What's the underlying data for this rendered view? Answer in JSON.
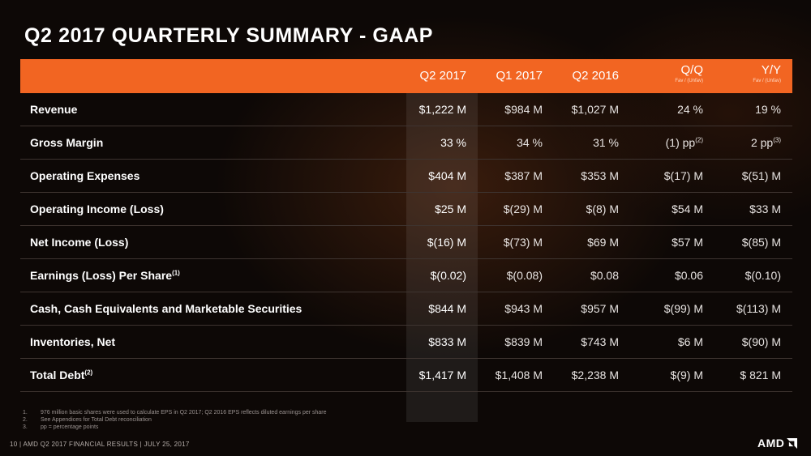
{
  "title": "Q2 2017 QUARTERLY SUMMARY - GAAP",
  "columns": [
    {
      "label": "Q2 2017",
      "sub": ""
    },
    {
      "label": "Q1 2017",
      "sub": ""
    },
    {
      "label": "Q2 2016",
      "sub": ""
    },
    {
      "label": "Q/Q",
      "sub": "Fav / (Unfav)"
    },
    {
      "label": "Y/Y",
      "sub": "Fav / (Unfav)"
    }
  ],
  "rows": [
    {
      "label": "Revenue",
      "label_sup": "",
      "values": [
        "$1,222 M",
        "$984 M",
        "$1,027 M",
        "24 %",
        "19 %"
      ],
      "sups": [
        "",
        "",
        "",
        "",
        ""
      ]
    },
    {
      "label": "Gross Margin",
      "label_sup": "",
      "values": [
        "33 %",
        "34 %",
        "31 %",
        "(1) pp",
        "2 pp"
      ],
      "sups": [
        "",
        "",
        "",
        "(2)",
        "(3)"
      ]
    },
    {
      "label": "Operating Expenses",
      "label_sup": "",
      "values": [
        "$404 M",
        "$387 M",
        "$353 M",
        "$(17) M",
        "$(51) M"
      ],
      "sups": [
        "",
        "",
        "",
        "",
        ""
      ]
    },
    {
      "label": "Operating Income (Loss)",
      "label_sup": "",
      "values": [
        "$25 M",
        "$(29) M",
        "$(8) M",
        "$54 M",
        "$33 M"
      ],
      "sups": [
        "",
        "",
        "",
        "",
        ""
      ]
    },
    {
      "label": "Net Income (Loss)",
      "label_sup": "",
      "values": [
        "$(16) M",
        "$(73) M",
        "$69 M",
        "$57 M",
        "$(85) M"
      ],
      "sups": [
        "",
        "",
        "",
        "",
        ""
      ]
    },
    {
      "label": "Earnings (Loss) Per Share",
      "label_sup": "(1)",
      "values": [
        "$(0.02)",
        "$(0.08)",
        "$0.08",
        "$0.06",
        "$(0.10)"
      ],
      "sups": [
        "",
        "",
        "",
        "",
        ""
      ]
    },
    {
      "label": "Cash, Cash Equivalents and Marketable Securities",
      "label_sup": "",
      "values": [
        "$844 M",
        "$943 M",
        "$957 M",
        "$(99) M",
        "$(113) M"
      ],
      "sups": [
        "",
        "",
        "",
        "",
        ""
      ]
    },
    {
      "label": "Inventories, Net",
      "label_sup": "",
      "values": [
        "$833 M",
        "$839 M",
        "$743 M",
        "$6 M",
        "$(90) M"
      ],
      "sups": [
        "",
        "",
        "",
        "",
        ""
      ]
    },
    {
      "label": "Total Debt",
      "label_sup": "(2)",
      "values": [
        "$1,417 M",
        "$1,408 M",
        "$2,238 M",
        "$(9) M",
        "$ 821 M"
      ],
      "sups": [
        "",
        "",
        "",
        "",
        ""
      ]
    }
  ],
  "footnotes": [
    {
      "num": "1.",
      "text": "976 million basic shares were used to calculate EPS in Q2 2017; Q2 2016 EPS reflects diluted earnings per share"
    },
    {
      "num": "2.",
      "text": "See Appendices for Total Debt reconciliation"
    },
    {
      "num": "3.",
      "text": "pp = percentage points"
    }
  ],
  "footer": {
    "page": "10",
    "text": "AMD Q2 2017 FINANCIAL RESULTS",
    "date": "JULY 25, 2017"
  },
  "logo": "AMD",
  "colors": {
    "accent": "#f26522",
    "background": "#0d0806"
  }
}
